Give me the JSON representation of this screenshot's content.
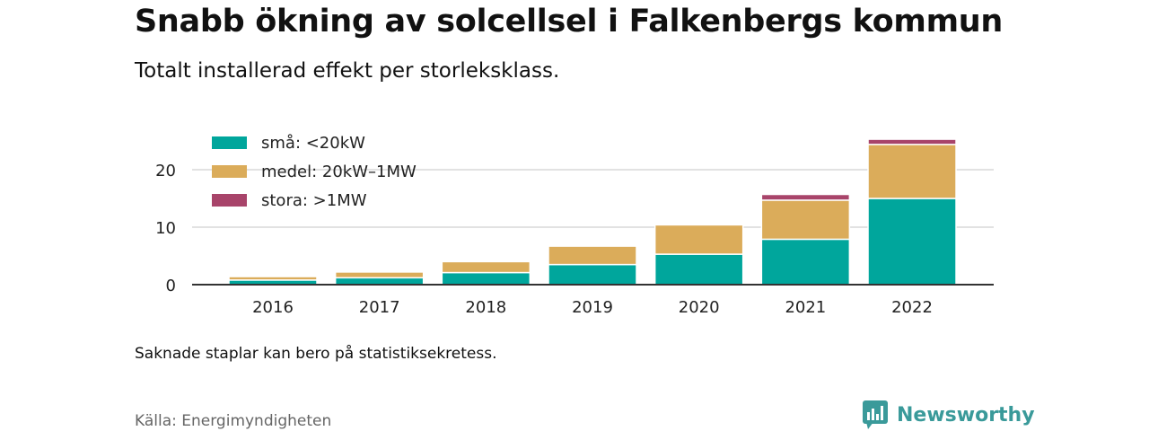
{
  "title": "Snabb ökning av solcellsel i Falkenbergs kommun",
  "subtitle": "Totalt installerad effekt per storleksklass.",
  "note": "Saknade staplar kan bero på statistiksekretess.",
  "source": "Källa: Energimyndigheten",
  "brand": "Newsworthy",
  "colors": {
    "sma": "#00a69c",
    "medel": "#dbac5a",
    "stora": "#a8446a",
    "brand": "#3a9a9a"
  },
  "chart_data": {
    "type": "bar",
    "stacked": true,
    "categories": [
      "2016",
      "2017",
      "2018",
      "2019",
      "2020",
      "2021",
      "2022"
    ],
    "series": [
      {
        "name": "små: <20kW",
        "values": [
          0.8,
          1.2,
          2.1,
          3.5,
          5.3,
          7.9,
          15.0
        ]
      },
      {
        "name": "medel: 20kW–1MW",
        "values": [
          0.6,
          1.0,
          1.9,
          3.2,
          5.1,
          6.8,
          9.4
        ]
      },
      {
        "name": "stora: >1MW",
        "values": [
          0,
          0,
          0,
          0,
          0,
          1.0,
          0.9
        ]
      }
    ],
    "ylim": [
      0,
      26.5
    ],
    "yticks": [
      0,
      10,
      20
    ],
    "grid": true,
    "legend_position": "top-left"
  }
}
